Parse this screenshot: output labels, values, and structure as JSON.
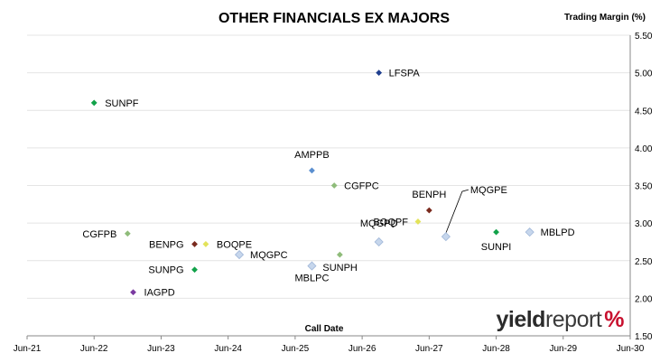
{
  "chart_data": {
    "type": "scatter",
    "title": "OTHER FINANCIALS EX MAJORS",
    "xlabel": "Call Date",
    "ylabel": "Trading Margin (%)",
    "x_ticks": [
      "Jun-21",
      "Jun-22",
      "Jun-23",
      "Jun-24",
      "Jun-25",
      "Jun-26",
      "Jun-27",
      "Jun-28",
      "Jun-29",
      "Jun-30"
    ],
    "xlim": [
      "2021-06",
      "2030-06"
    ],
    "ylim": [
      1.5,
      5.5
    ],
    "y_ticks": [
      "1.50",
      "2.00",
      "2.50",
      "3.00",
      "3.50",
      "4.00",
      "4.50",
      "5.00",
      "5.50"
    ],
    "y_axis_position": "right",
    "grid": "horizontal",
    "points": [
      {
        "label": "SUNPF",
        "date": "2022-06",
        "y": 4.6,
        "color": "#12a24a"
      },
      {
        "label": "LFSPA",
        "date": "2026-09",
        "y": 5.0,
        "color": "#1f3f8f"
      },
      {
        "label": "AMPPB",
        "date": "2025-09",
        "y": 3.7,
        "color": "#5b8fd0"
      },
      {
        "label": "CGFPC",
        "date": "2026-01",
        "y": 3.5,
        "color": "#8fbc7a"
      },
      {
        "label": "BENPH",
        "date": "2027-06",
        "y": 3.17,
        "color": "#7a2a1e"
      },
      {
        "label": "MQGPE",
        "date": "2027-09",
        "y": 2.82,
        "color": "#c6d6ec"
      },
      {
        "label": "MQGPD",
        "date": "2026-09",
        "y": 2.75,
        "color": "#c6d6ec"
      },
      {
        "label": "BOQPF",
        "date": "2027-04",
        "y": 3.02,
        "color": "#e3e35a"
      },
      {
        "label": "CGFPB",
        "date": "2022-12",
        "y": 2.86,
        "color": "#8fbc7a"
      },
      {
        "label": "BENPG",
        "date": "2023-12",
        "y": 2.72,
        "color": "#7a2a1e"
      },
      {
        "label": "BOQPE",
        "date": "2024-02",
        "y": 2.72,
        "color": "#e3e35a"
      },
      {
        "label": "MQGPC",
        "date": "2024-08",
        "y": 2.58,
        "color": "#c6d6ec"
      },
      {
        "label": "SUNPG",
        "date": "2023-12",
        "y": 2.38,
        "color": "#12a24a"
      },
      {
        "label": "MBLPC",
        "date": "2025-09",
        "y": 2.43,
        "color": "#c6d6ec"
      },
      {
        "label": "SUNPH",
        "date": "2026-02",
        "y": 2.58,
        "color": "#8fbc7a"
      },
      {
        "label": "IAGPD",
        "date": "2023-01",
        "y": 2.08,
        "color": "#7a3aa0"
      },
      {
        "label": "SUNPI",
        "date": "2028-06",
        "y": 2.88,
        "color": "#12a24a"
      },
      {
        "label": "MBLPD",
        "date": "2028-12",
        "y": 2.88,
        "color": "#c6d6ec"
      }
    ]
  },
  "brand": {
    "part1": "yield",
    "part2": "report",
    "symbol": "%"
  }
}
